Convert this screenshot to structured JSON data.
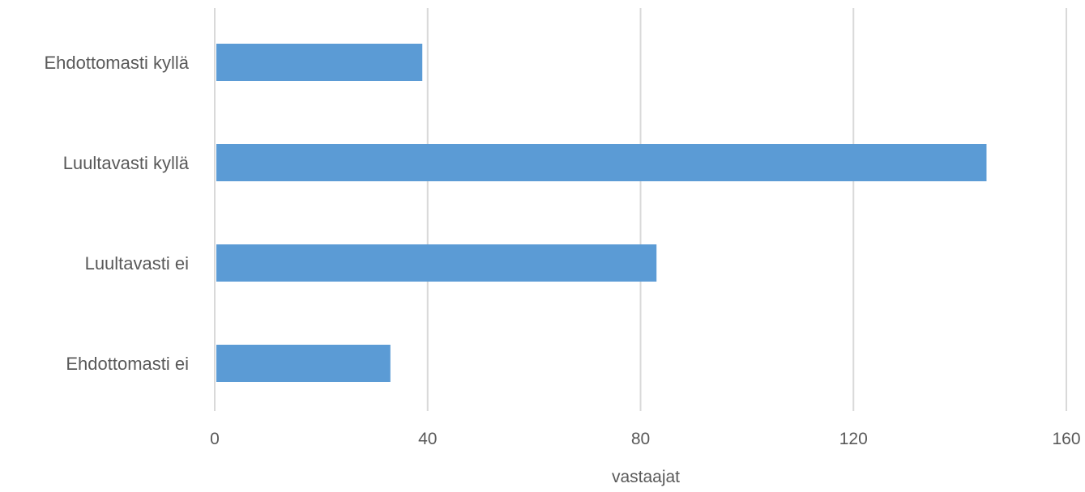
{
  "chart_data": {
    "type": "bar",
    "orientation": "horizontal",
    "categories": [
      "Ehdottomasti kyllä",
      "Luultavasti kyllä",
      "Luultavasti ei",
      "Ehdottomasti ei"
    ],
    "values": [
      39,
      145,
      83,
      33
    ],
    "title": "",
    "xlabel": "vastaajat",
    "ylabel": "",
    "xlim": [
      0,
      160
    ],
    "xticks": [
      0,
      40,
      80,
      120,
      160
    ],
    "tick_labels": [
      "0",
      "40",
      "80",
      "120",
      "160"
    ],
    "grid": true,
    "legend": "none",
    "bar_color": "#5b9bd5",
    "grid_color": "#d9d9d9",
    "text_color": "#595959"
  }
}
